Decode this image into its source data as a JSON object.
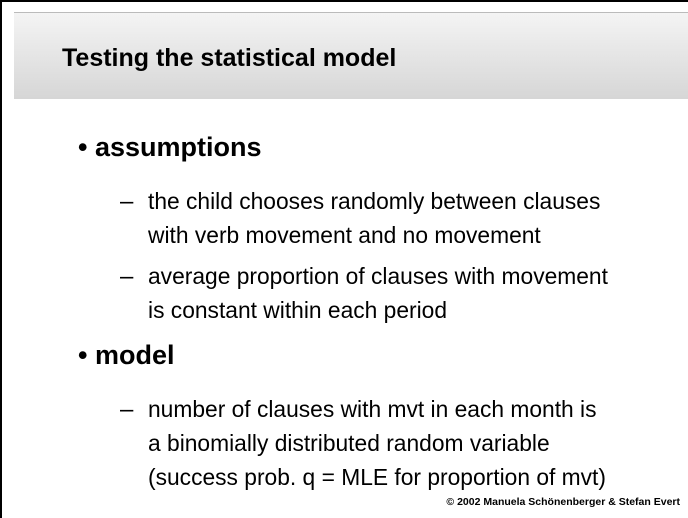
{
  "title": "Testing the statistical model",
  "bullets": [
    {
      "text": "assumptions",
      "items": [
        {
          "lines": [
            "the child chooses randomly between clauses",
            "with verb movement and no movement"
          ]
        },
        {
          "lines": [
            "average proportion of clauses with movement",
            "is constant within each period"
          ]
        }
      ]
    },
    {
      "text": "model",
      "items": [
        {
          "lines": [
            "number of clauses with mvt in each month is",
            "a binomially distributed random variable",
            "(success prob. q = MLE for proportion of mvt)"
          ]
        }
      ]
    }
  ],
  "footer": "© 2002  Manuela Schönenberger  & Stefan Evert"
}
